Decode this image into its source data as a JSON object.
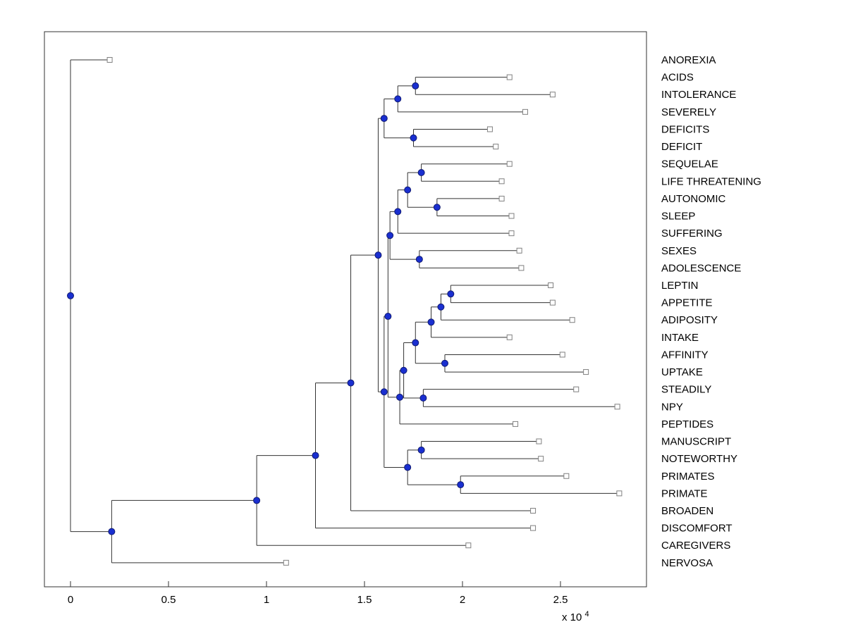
{
  "axis": {
    "tick_labels": [
      "0",
      "0.5",
      "1",
      "1.5",
      "2",
      "2.5"
    ],
    "tick_values": [
      0,
      0.5,
      1,
      1.5,
      2,
      2.5
    ],
    "exponent_prefix": "x 10",
    "exponent": "4",
    "xlim": [
      -0.13,
      2.94
    ]
  },
  "colors": {
    "background": "#ffffff",
    "line": "#333333",
    "box": "#333333",
    "internal_node_fill": "#1a2fd0",
    "internal_node_stroke": "#101a70",
    "leaf_marker_fill": "#ffffff",
    "leaf_marker_stroke": "#808080",
    "text": "#000000"
  },
  "chart_data": {
    "type": "dendrogram",
    "orientation": "horizontal, root at left (x=0), leaves at right",
    "units": "x-axis distance values are in units of 10^4",
    "title": "",
    "xlabel": "",
    "ylabel": "",
    "grid": false,
    "legend": false,
    "marker_styles": {
      "internal_node": "filled blue circle",
      "leaf_node": "open white square"
    },
    "leaf_labels": [
      "ANOREXIA",
      "ACIDS",
      "INTOLERANCE",
      "SEVERELY",
      "DEFICITS",
      "DEFICIT",
      "SEQUELAE",
      "LIFE THREATENING",
      "AUTONOMIC",
      "SLEEP",
      "SUFFERING",
      "SEXES",
      "ADOLESCENCE",
      "LEPTIN",
      "APPETITE",
      "ADIPOSITY",
      "INTAKE",
      "AFFINITY",
      "UPTAKE",
      "STEADILY",
      "NPY",
      "PEPTIDES",
      "MANUSCRIPT",
      "NOTEWORTHY",
      "PRIMATES",
      "PRIMATE",
      "BROADEN",
      "DISCOMFORT",
      "CAREGIVERS",
      "NERVOSA"
    ],
    "tree": {
      "x": 0.0,
      "children": [
        {
          "leaf": "ANOREXIA",
          "x": 0.2
        },
        {
          "x": 0.21,
          "children": [
            {
              "x": 0.95,
              "children": [
                {
                  "x": 1.25,
                  "children": [
                    {
                      "x": 1.43,
                      "children": [
                        {
                          "x": 1.57,
                          "children": [
                            {
                              "x": 1.6,
                              "children": [
                                {
                                  "x": 1.67,
                                  "children": [
                                    {
                                      "x": 1.76,
                                      "children": [
                                        {
                                          "leaf": "ACIDS",
                                          "x": 2.24
                                        },
                                        {
                                          "leaf": "INTOLERANCE",
                                          "x": 2.46
                                        }
                                      ]
                                    },
                                    {
                                      "leaf": "SEVERELY",
                                      "x": 2.32
                                    }
                                  ]
                                },
                                {
                                  "x": 1.75,
                                  "children": [
                                    {
                                      "leaf": "DEFICITS",
                                      "x": 2.14
                                    },
                                    {
                                      "leaf": "DEFICIT",
                                      "x": 2.17
                                    }
                                  ]
                                }
                              ]
                            },
                            {
                              "x": 1.6,
                              "children": [
                                {
                                  "x": 1.62,
                                  "children": [
                                    {
                                      "x": 1.63,
                                      "children": [
                                        {
                                          "x": 1.67,
                                          "children": [
                                            {
                                              "x": 1.72,
                                              "children": [
                                                {
                                                  "x": 1.79,
                                                  "children": [
                                                    {
                                                      "leaf": "SEQUELAE",
                                                      "x": 2.24
                                                    },
                                                    {
                                                      "leaf": "LIFE THREATENING",
                                                      "x": 2.2
                                                    }
                                                  ]
                                                },
                                                {
                                                  "x": 1.87,
                                                  "children": [
                                                    {
                                                      "leaf": "AUTONOMIC",
                                                      "x": 2.2
                                                    },
                                                    {
                                                      "leaf": "SLEEP",
                                                      "x": 2.25
                                                    }
                                                  ]
                                                }
                                              ]
                                            },
                                            {
                                              "leaf": "SUFFERING",
                                              "x": 2.25
                                            }
                                          ]
                                        },
                                        {
                                          "x": 1.78,
                                          "children": [
                                            {
                                              "leaf": "SEXES",
                                              "x": 2.29
                                            },
                                            {
                                              "leaf": "ADOLESCENCE",
                                              "x": 2.3
                                            }
                                          ]
                                        }
                                      ]
                                    },
                                    {
                                      "x": 1.68,
                                      "children": [
                                        {
                                          "x": 1.7,
                                          "children": [
                                            {
                                              "x": 1.76,
                                              "children": [
                                                {
                                                  "x": 1.84,
                                                  "children": [
                                                    {
                                                      "x": 1.89,
                                                      "children": [
                                                        {
                                                          "x": 1.94,
                                                          "children": [
                                                            {
                                                              "leaf": "LEPTIN",
                                                              "x": 2.45
                                                            },
                                                            {
                                                              "leaf": "APPETITE",
                                                              "x": 2.46
                                                            }
                                                          ]
                                                        },
                                                        {
                                                          "leaf": "ADIPOSITY",
                                                          "x": 2.56
                                                        }
                                                      ]
                                                    },
                                                    {
                                                      "leaf": "INTAKE",
                                                      "x": 2.24
                                                    }
                                                  ]
                                                },
                                                {
                                                  "x": 1.91,
                                                  "children": [
                                                    {
                                                      "leaf": "AFFINITY",
                                                      "x": 2.51
                                                    },
                                                    {
                                                      "leaf": "UPTAKE",
                                                      "x": 2.63
                                                    }
                                                  ]
                                                }
                                              ]
                                            },
                                            {
                                              "x": 1.8,
                                              "children": [
                                                {
                                                  "leaf": "STEADILY",
                                                  "x": 2.58
                                                },
                                                {
                                                  "leaf": "NPY",
                                                  "x": 2.79
                                                }
                                              ]
                                            }
                                          ]
                                        },
                                        {
                                          "leaf": "PEPTIDES",
                                          "x": 2.27
                                        }
                                      ]
                                    }
                                  ]
                                },
                                {
                                  "x": 1.72,
                                  "children": [
                                    {
                                      "x": 1.79,
                                      "children": [
                                        {
                                          "leaf": "MANUSCRIPT",
                                          "x": 2.39
                                        },
                                        {
                                          "leaf": "NOTEWORTHY",
                                          "x": 2.4
                                        }
                                      ]
                                    },
                                    {
                                      "x": 1.99,
                                      "children": [
                                        {
                                          "leaf": "PRIMATES",
                                          "x": 2.53
                                        },
                                        {
                                          "leaf": "PRIMATE",
                                          "x": 2.8
                                        }
                                      ]
                                    }
                                  ]
                                }
                              ]
                            }
                          ]
                        },
                        {
                          "leaf": "BROADEN",
                          "x": 2.36
                        }
                      ]
                    },
                    {
                      "leaf": "DISCOMFORT",
                      "x": 2.36
                    }
                  ]
                },
                {
                  "leaf": "CAREGIVERS",
                  "x": 2.03
                }
              ]
            },
            {
              "leaf": "NERVOSA",
              "x": 1.1
            }
          ]
        }
      ]
    }
  }
}
